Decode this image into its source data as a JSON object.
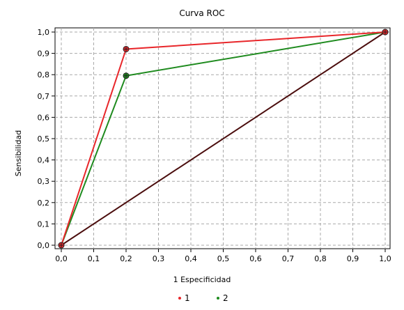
{
  "chart_data": {
    "type": "line",
    "title": "Curva ROC",
    "xlabel": "1 Especificidad",
    "ylabel": "Sensibilidad",
    "xlim": [
      0,
      1
    ],
    "ylim": [
      0,
      1
    ],
    "grid": true,
    "legend_placement": "bottom",
    "x_ticks": [
      "0,0",
      "0,1",
      "0,2",
      "0,3",
      "0,4",
      "0,5",
      "0,6",
      "0,7",
      "0,8",
      "0,9",
      "1,0"
    ],
    "y_ticks": [
      "0,0",
      "0,1",
      "0,2",
      "0,3",
      "0,4",
      "0,5",
      "0,6",
      "0,7",
      "0,8",
      "0,9",
      "1,0"
    ],
    "series": [
      {
        "name": "1",
        "color": "#e8262a",
        "points": [
          [
            0,
            0
          ],
          [
            0.2,
            0.92
          ],
          [
            1.0,
            1.0
          ]
        ]
      },
      {
        "name": "2",
        "color": "#1f8b1f",
        "points": [
          [
            0,
            0
          ],
          [
            0.2,
            0.795
          ],
          [
            1.0,
            1.0
          ]
        ]
      }
    ],
    "reference_line": {
      "color": "#4b0d0d",
      "points": [
        [
          0,
          0
        ],
        [
          1,
          1
        ]
      ]
    }
  }
}
